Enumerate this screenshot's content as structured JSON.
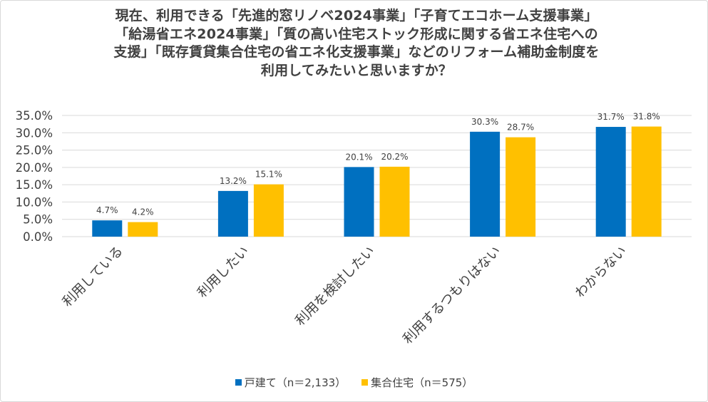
{
  "chart_data": {
    "type": "bar",
    "title_lines": [
      "現在、利用できる「先進的窓リノベ2024事業」「子育てエコホーム支援事業」",
      "「給湯省エネ2024事業」「質の高い住宅ストック形成に関する省エネ住宅への",
      "支援」「既存賃貸集合住宅の省エネ化支援事業」などのリフォーム補助金制度を",
      "利用してみたいと思いますか？"
    ],
    "categories": [
      "利用している",
      "利用したい",
      "利用を検討したい",
      "利用するつもりはない",
      "わからない"
    ],
    "series": [
      {
        "name": "戸建て（n＝2,133）",
        "color": "#0070C0",
        "values": [
          4.7,
          13.2,
          20.1,
          30.3,
          31.7
        ],
        "labels": [
          "4.7%",
          "13.2%",
          "20.1%",
          "30.3%",
          "31.7%"
        ]
      },
      {
        "name": "集合住宅（n＝575）",
        "color": "#FFC000",
        "values": [
          4.2,
          15.1,
          20.2,
          28.7,
          31.8
        ],
        "labels": [
          "4.2%",
          "15.1%",
          "20.2%",
          "28.7%",
          "31.8%"
        ]
      }
    ],
    "yticks": [
      "35.0%",
      "30.0%",
      "25.0%",
      "20.0%",
      "15.0%",
      "10.0%",
      "5.0%",
      "0.0%"
    ],
    "ylim": [
      0,
      35
    ],
    "xlabel": "",
    "ylabel": "",
    "grid": true,
    "legend_position": "bottom"
  }
}
